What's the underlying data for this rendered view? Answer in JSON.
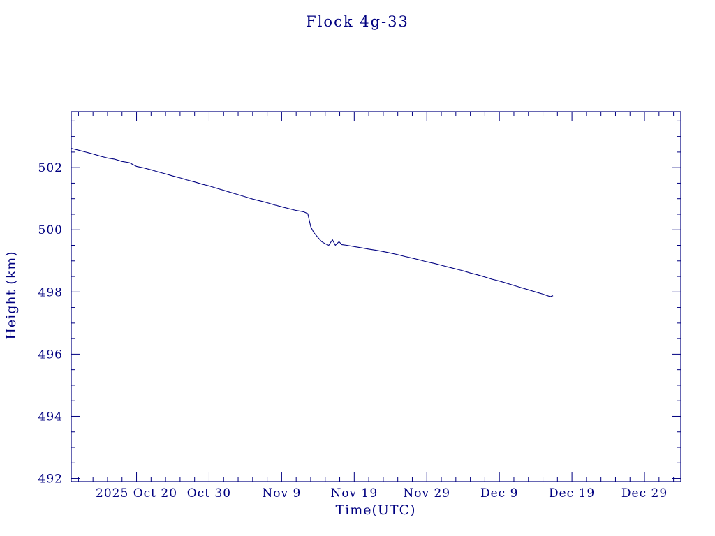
{
  "page": {
    "background": "#ffffff"
  },
  "chart_data": {
    "type": "line",
    "title": "Flock 4g-33",
    "xlabel": "Time(UTC)",
    "ylabel": "Height (km)",
    "color": "#000080",
    "grid": false,
    "legend": "none",
    "x_domain": [
      0,
      84
    ],
    "x_major_ticks": [
      {
        "day": 9,
        "label": "2025 Oct 20"
      },
      {
        "day": 19,
        "label": "Oct 30"
      },
      {
        "day": 29,
        "label": "Nov 9"
      },
      {
        "day": 39,
        "label": "Nov 19"
      },
      {
        "day": 49,
        "label": "Nov 29"
      },
      {
        "day": 59,
        "label": "Dec 9"
      },
      {
        "day": 69,
        "label": "Dec 19"
      },
      {
        "day": 79,
        "label": "Dec 29"
      }
    ],
    "x_minor_step_days": 2,
    "ylim": [
      491.9,
      503.8
    ],
    "y_major_ticks": [
      492,
      494,
      496,
      498,
      500,
      502
    ],
    "y_minor_step": 0.5,
    "series": [
      {
        "name": "height-km",
        "points": [
          [
            0,
            502.62
          ],
          [
            1,
            502.56
          ],
          [
            2,
            502.5
          ],
          [
            3,
            502.44
          ],
          [
            4,
            502.37
          ],
          [
            5,
            502.31
          ],
          [
            6,
            502.27
          ],
          [
            7,
            502.2
          ],
          [
            8,
            502.16
          ],
          [
            8.5,
            502.1
          ],
          [
            9,
            502.04
          ],
          [
            10,
            501.99
          ],
          [
            11,
            501.93
          ],
          [
            12,
            501.86
          ],
          [
            13,
            501.8
          ],
          [
            14,
            501.73
          ],
          [
            15,
            501.67
          ],
          [
            16,
            501.6
          ],
          [
            17,
            501.54
          ],
          [
            18,
            501.47
          ],
          [
            19,
            501.41
          ],
          [
            20,
            501.34
          ],
          [
            21,
            501.27
          ],
          [
            22,
            501.2
          ],
          [
            23,
            501.13
          ],
          [
            24,
            501.06
          ],
          [
            25,
            500.99
          ],
          [
            26,
            500.93
          ],
          [
            27,
            500.87
          ],
          [
            28,
            500.8
          ],
          [
            29,
            500.74
          ],
          [
            30,
            500.68
          ],
          [
            31,
            500.62
          ],
          [
            32,
            500.58
          ],
          [
            32.6,
            500.52
          ],
          [
            33,
            500.1
          ],
          [
            33.4,
            499.92
          ],
          [
            34,
            499.75
          ],
          [
            34.5,
            499.62
          ],
          [
            35,
            499.55
          ],
          [
            35.5,
            499.5
          ],
          [
            36,
            499.68
          ],
          [
            36.4,
            499.5
          ],
          [
            36.9,
            499.62
          ],
          [
            37.3,
            499.52
          ],
          [
            38,
            499.5
          ],
          [
            39,
            499.46
          ],
          [
            40,
            499.42
          ],
          [
            41,
            499.38
          ],
          [
            42,
            499.34
          ],
          [
            43,
            499.3
          ],
          [
            44,
            499.25
          ],
          [
            45,
            499.2
          ],
          [
            46,
            499.14
          ],
          [
            47,
            499.09
          ],
          [
            48,
            499.03
          ],
          [
            49,
            498.97
          ],
          [
            50,
            498.92
          ],
          [
            51,
            498.86
          ],
          [
            52,
            498.8
          ],
          [
            53,
            498.74
          ],
          [
            54,
            498.68
          ],
          [
            55,
            498.61
          ],
          [
            56,
            498.55
          ],
          [
            57,
            498.48
          ],
          [
            58,
            498.41
          ],
          [
            59,
            498.35
          ],
          [
            60,
            498.28
          ],
          [
            61,
            498.21
          ],
          [
            62,
            498.14
          ],
          [
            63,
            498.07
          ],
          [
            64,
            498.0
          ],
          [
            65,
            497.93
          ],
          [
            65.5,
            497.89
          ],
          [
            66,
            497.85
          ],
          [
            66.4,
            497.88
          ]
        ]
      }
    ]
  }
}
